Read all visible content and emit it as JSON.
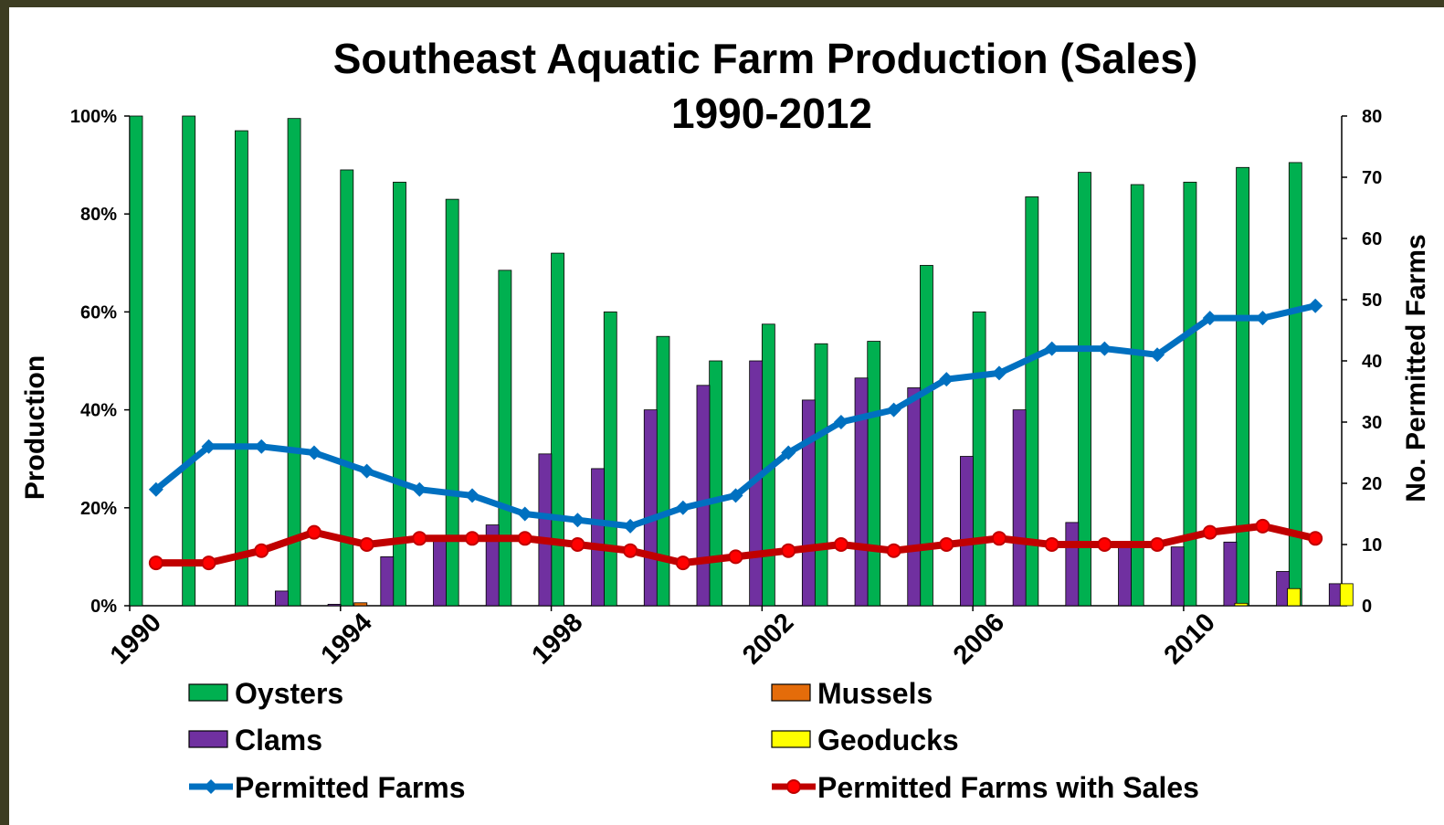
{
  "chart_data": {
    "type": "bar",
    "title_line1": "Southeast Aquatic Farm Production (Sales)",
    "title_line2": "1990-2012",
    "ylabel": "Production",
    "y2label": "No. Permitted Farms",
    "ylim": [
      0,
      100
    ],
    "y2lim": [
      0,
      80
    ],
    "y_ticks": [
      "0%",
      "20%",
      "40%",
      "60%",
      "80%",
      "100%"
    ],
    "y2_ticks": [
      "0",
      "10",
      "20",
      "30",
      "40",
      "50",
      "60",
      "70",
      "80"
    ],
    "x": [
      1990,
      1991,
      1992,
      1993,
      1994,
      1995,
      1996,
      1997,
      1998,
      1999,
      2000,
      2001,
      2002,
      2003,
      2004,
      2005,
      2006,
      2007,
      2008,
      2009,
      2010,
      2011,
      2012
    ],
    "x_tick_labels": [
      "1990",
      "1994",
      "1998",
      "2002",
      "2006",
      "2010"
    ],
    "x_tick_years": [
      1990,
      1994,
      1998,
      2002,
      2006,
      2010
    ],
    "legend_position": "bottom",
    "series": [
      {
        "name": "Oysters",
        "kind": "bar",
        "axis": "left",
        "color": "#00b050",
        "values": [
          100,
          100,
          97,
          99.5,
          89,
          86.5,
          83,
          68.5,
          72,
          60,
          55,
          50,
          57.5,
          53.5,
          54,
          69.5,
          60,
          83.5,
          88.5,
          86,
          86.5,
          89.5,
          90.5
        ]
      },
      {
        "name": "Mussels",
        "kind": "bar",
        "axis": "left",
        "color": "#e46c0a",
        "values": [
          0,
          0,
          0,
          0,
          0.6,
          0,
          0,
          0,
          0,
          0,
          0,
          0,
          0,
          0,
          0,
          0,
          0,
          0,
          0,
          0,
          0,
          0,
          0
        ]
      },
      {
        "name": "Clams",
        "kind": "bar",
        "axis": "left",
        "color": "#7030a0",
        "values": [
          0,
          0,
          3,
          0.3,
          10,
          14,
          16.5,
          31,
          28,
          40,
          45,
          50,
          42,
          46.5,
          44.5,
          30.5,
          40,
          17,
          12,
          12,
          13,
          7,
          4.5
        ]
      },
      {
        "name": "Geoducks",
        "kind": "bar",
        "axis": "left",
        "color": "#ffff00",
        "values": [
          0,
          0,
          0,
          0,
          0,
          0,
          0,
          0,
          0,
          0,
          0,
          0,
          0,
          0,
          0,
          0,
          0,
          0,
          0,
          0,
          0.5,
          3.5,
          4.5
        ]
      },
      {
        "name": "Permitted Farms",
        "kind": "line",
        "axis": "right",
        "color": "#0070c0",
        "values": [
          19,
          26,
          26,
          25,
          22,
          19,
          18,
          15,
          14,
          13,
          16,
          18,
          25,
          30,
          32,
          37,
          38,
          42,
          42,
          41,
          47,
          47,
          49
        ]
      },
      {
        "name": "Permitted Farms with Sales",
        "kind": "line",
        "axis": "right",
        "color": "#c00000",
        "values": [
          7,
          7,
          9,
          12,
          10,
          11,
          11,
          11,
          10,
          9,
          7,
          8,
          9,
          10,
          9,
          10,
          11,
          10,
          10,
          10,
          12,
          13,
          11
        ]
      }
    ]
  }
}
